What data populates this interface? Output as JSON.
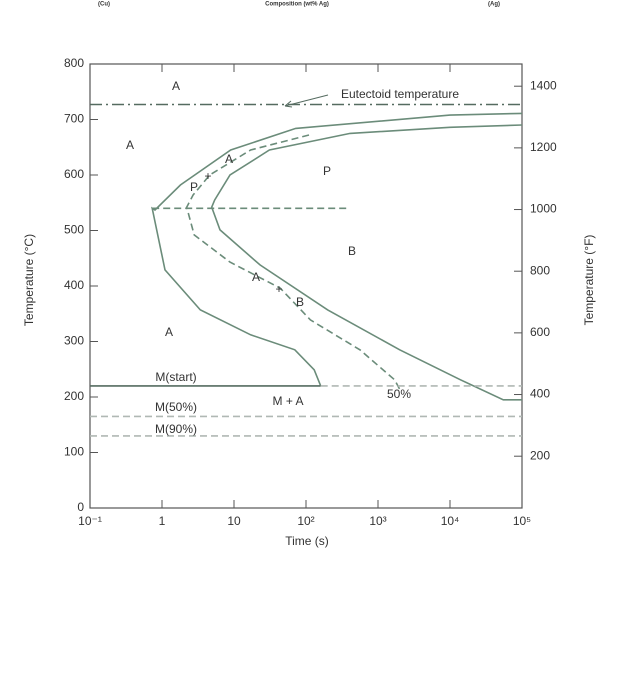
{
  "header": {
    "left": "(Cu)",
    "center": "Composition (wt% Ag)",
    "right": "(Ag)"
  },
  "chart_data": {
    "type": "line",
    "x_scale": "log",
    "x_label": "Time (s)",
    "y_label": "Temperature (°C)",
    "y2_label": "Temperature (°F)",
    "xlim": [
      0.1,
      100000
    ],
    "xticks": [
      {
        "value": 0.1,
        "label": "10⁻¹"
      },
      1,
      10,
      {
        "value": 100,
        "label": "10²"
      },
      {
        "value": 1000,
        "label": "10³"
      },
      {
        "value": 10000,
        "label": "10⁴"
      },
      {
        "value": 100000,
        "label": "10⁵"
      }
    ],
    "ylim": [
      0,
      800
    ],
    "yticks": [
      0,
      100,
      200,
      300,
      400,
      500,
      600,
      700,
      800
    ],
    "y2lim": [
      32,
      1472
    ],
    "y2ticks": [
      200,
      400,
      600,
      800,
      1000,
      1200,
      1400
    ],
    "series": [
      {
        "color": "#6b8c7a",
        "dash": "solid",
        "x": [
          100000,
          10000,
          72,
          9,
          1.8,
          0.8,
          0.73,
          1.1,
          3.4,
          17,
          70,
          130,
          160
        ],
        "values": [
          711,
          708,
          684,
          645,
          582,
          537,
          540,
          429,
          357,
          312,
          285,
          249,
          220
        ]
      },
      {
        "color": "#6b8c7a",
        "dash": "dash",
        "x": [
          110,
          17,
          4.6,
          2.7,
          2.2,
          2.8,
          8.8,
          44,
          115,
          560,
          1700,
          2100
        ],
        "values": [
          672,
          645,
          600,
          564,
          542,
          492,
          443,
          396,
          339,
          285,
          231,
          209
        ]
      },
      {
        "color": "#6b8c7a",
        "dash": "solid",
        "x": [
          100000,
          10000,
          410,
          31,
          8.8,
          5.4,
          4.9,
          6.4,
          23,
          200,
          2000,
          14000,
          55000,
          100000
        ],
        "values": [
          690,
          686,
          675,
          645,
          600,
          555,
          542,
          501,
          438,
          357,
          285,
          231,
          195,
          195
        ]
      },
      {
        "color": "#556b60",
        "dash": "dashdot",
        "x": [
          0.1,
          100000
        ],
        "values": [
          727,
          727
        ]
      },
      {
        "color": "#6b8c7a",
        "dash": "dash",
        "x": [
          0.73,
          370
        ],
        "values": [
          540,
          540
        ]
      },
      {
        "color": "#556b60",
        "dash": "solid",
        "x": [
          0.1,
          160
        ],
        "values": [
          220,
          220
        ]
      },
      {
        "color": "#b0b8b4",
        "dash": "dash",
        "x": [
          160,
          100000
        ],
        "values": [
          220,
          220
        ]
      },
      {
        "color": "#b0b8b4",
        "dash": "dash",
        "x": [
          0.1,
          100000
        ],
        "values": [
          165,
          165
        ]
      },
      {
        "color": "#b0b8b4",
        "dash": "dash",
        "x": [
          0.1,
          100000
        ],
        "values": [
          130,
          130
        ]
      }
    ],
    "annotations": [
      "A",
      "Eutectoid temperature",
      "A",
      "P",
      "P",
      "+",
      "A",
      "B",
      "A",
      "+",
      "B",
      "A",
      "M(start)",
      "M + A",
      "50%",
      "M(50%)",
      "M(90%)"
    ]
  }
}
